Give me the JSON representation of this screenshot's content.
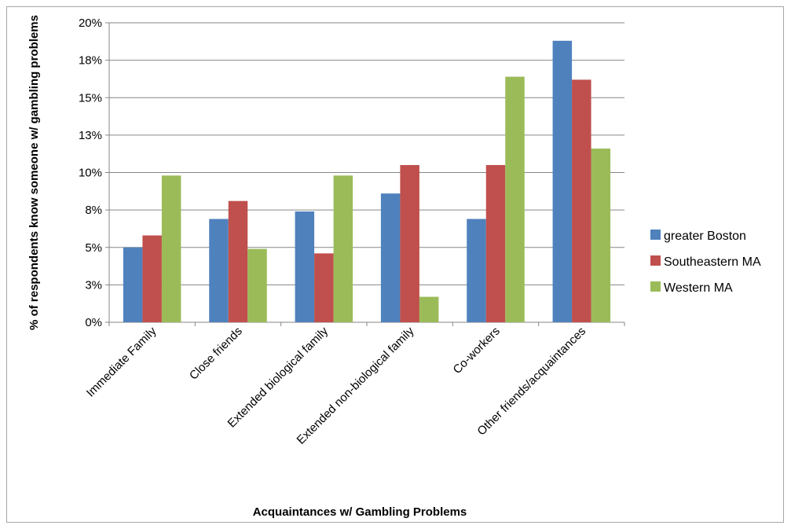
{
  "chart_data": {
    "type": "bar",
    "title": "",
    "xlabel": "Acquaintances w/ Gambling Problems",
    "ylabel": "% of respondents know someone w/ gambling problems",
    "ylim": [
      0,
      20
    ],
    "yticks": [
      0,
      2.5,
      5,
      7.5,
      10,
      12.5,
      15,
      17.5,
      20
    ],
    "ytick_labels": [
      "0%",
      "3%",
      "5%",
      "8%",
      "10%",
      "13%",
      "15%",
      "18%",
      "20%"
    ],
    "grid": true,
    "legend_position": "right",
    "categories": [
      "Immediate Family",
      "Close friends",
      "Extended biological family",
      "Extended non-biological family",
      "Co-workers",
      "Other friends/acquaintances"
    ],
    "series": [
      {
        "name": "greater Boston",
        "color": "#4f81bd",
        "values": [
          5.0,
          6.9,
          7.4,
          8.6,
          6.9,
          18.8
        ]
      },
      {
        "name": "Southeastern MA",
        "color": "#c0504d",
        "values": [
          5.8,
          8.1,
          4.6,
          10.5,
          10.5,
          16.2
        ]
      },
      {
        "name": "Western MA",
        "color": "#9bbb59",
        "values": [
          9.8,
          4.9,
          9.8,
          1.7,
          16.4,
          11.6
        ]
      }
    ]
  }
}
